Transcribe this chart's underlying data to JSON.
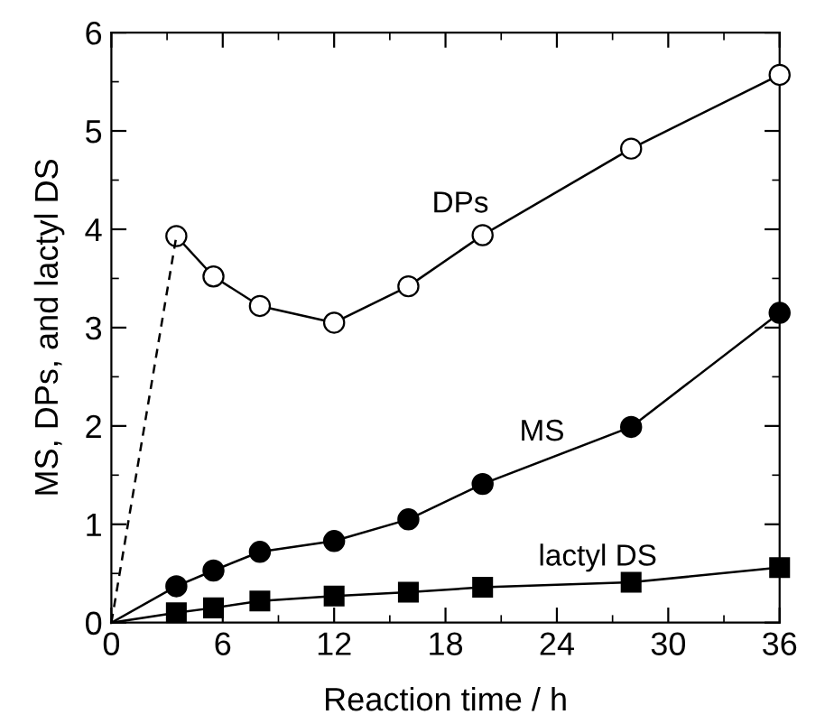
{
  "chart_data": {
    "type": "line",
    "xlabel": "Reaction time / h",
    "ylabel": "MS, DPs, and lactyl DS",
    "xlim": [
      0,
      36
    ],
    "ylim": [
      0,
      6
    ],
    "xticks": [
      0,
      6,
      12,
      18,
      24,
      30,
      36
    ],
    "yticks": [
      0,
      1,
      2,
      3,
      4,
      5,
      6
    ],
    "grid": false,
    "legend": false,
    "series": [
      {
        "name": "DPs",
        "color": "#000000",
        "marker": "circle",
        "x": [
          3.5,
          5.5,
          8,
          12,
          16,
          20,
          28,
          36
        ],
        "values": [
          3.93,
          3.52,
          3.22,
          3.05,
          3.42,
          3.94,
          4.82,
          5.57
        ]
      },
      {
        "color": "#000000",
        "marker": "none",
        "line_style": "dashed",
        "x": [
          0,
          3.5
        ],
        "values": [
          0,
          3.93
        ]
      },
      {
        "name": "MS",
        "color": "#000000",
        "marker": "circle",
        "x": [
          0,
          3.5,
          5.5,
          8,
          12,
          16,
          20,
          28,
          36
        ],
        "values": [
          0,
          0.37,
          0.53,
          0.72,
          0.83,
          1.05,
          1.41,
          1.99,
          3.15
        ]
      },
      {
        "name": "lactyl DS",
        "color": "#000000",
        "marker": "square",
        "x": [
          0,
          3.5,
          5.5,
          8,
          12,
          16,
          20,
          28,
          36
        ],
        "values": [
          0,
          0.1,
          0.15,
          0.22,
          0.27,
          0.31,
          0.36,
          0.41,
          0.56
        ]
      }
    ]
  }
}
